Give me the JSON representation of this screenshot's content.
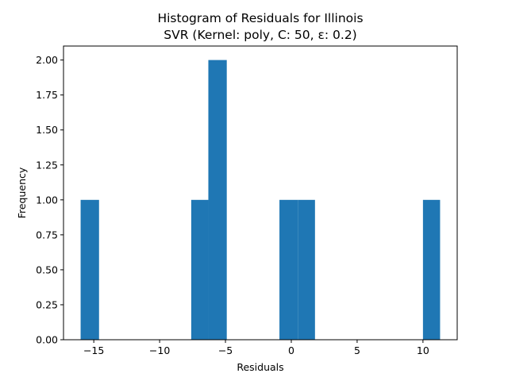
{
  "chart_data": {
    "type": "bar",
    "title": "Histogram of Residuals for Illinois",
    "subtitle": "SVR (Kernel: poly, C: 50, ε: 0.2)",
    "xlabel": "Residuals",
    "ylabel": "Frequency",
    "xlim": [
      -17.3,
      12.6
    ],
    "ylim": [
      0,
      2.1
    ],
    "x_ticks": [
      -15,
      -10,
      -5,
      0,
      5,
      10
    ],
    "x_tick_labels": [
      "−15",
      "−10",
      "−5",
      "0",
      "5",
      "10"
    ],
    "y_ticks": [
      0.0,
      0.25,
      0.5,
      0.75,
      1.0,
      1.25,
      1.5,
      1.75,
      2.0
    ],
    "y_tick_labels": [
      "0.00",
      "0.25",
      "0.50",
      "0.75",
      "1.00",
      "1.25",
      "1.50",
      "1.75",
      "2.00"
    ],
    "bar_color": "#1f77b4",
    "grid": false,
    "bins": [
      {
        "x0": -16.0,
        "x1": -14.6,
        "count": 1
      },
      {
        "x0": -7.6,
        "x1": -6.3,
        "count": 1
      },
      {
        "x0": -6.3,
        "x1": -4.9,
        "count": 2
      },
      {
        "x0": -0.9,
        "x1": 0.5,
        "count": 1
      },
      {
        "x0": 0.5,
        "x1": 1.8,
        "count": 1
      },
      {
        "x0": 10.0,
        "x1": 11.3,
        "count": 1
      }
    ]
  }
}
